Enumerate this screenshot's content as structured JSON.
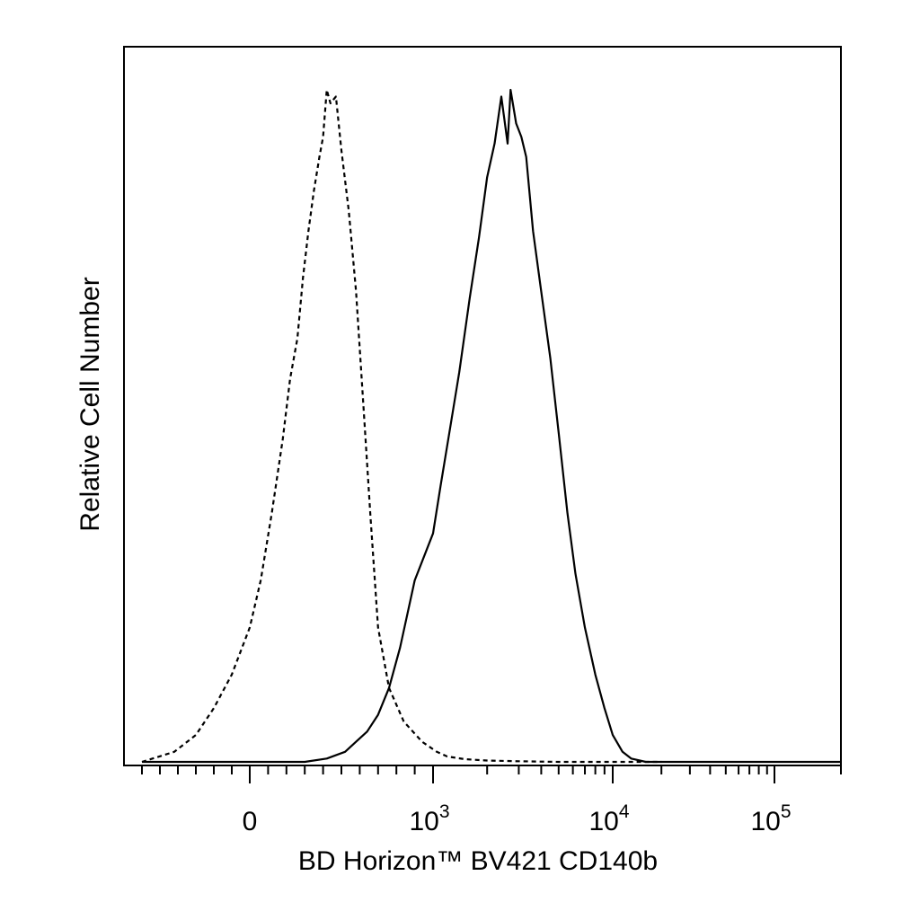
{
  "chart_data": {
    "type": "line",
    "title": "",
    "xlabel": "BD Horizon™ BV421 CD140b",
    "ylabel": "Relative Cell Number",
    "x_scale": "biexponential",
    "xlim": [
      -700,
      200000
    ],
    "ylim": [
      0,
      100
    ],
    "x_tick_labels": [
      {
        "value": 0,
        "base": "0",
        "exp": ""
      },
      {
        "value": 1000,
        "base": "10",
        "exp": "3"
      },
      {
        "value": 10000,
        "base": "10",
        "exp": "4"
      },
      {
        "value": 100000,
        "base": "10",
        "exp": "5"
      }
    ],
    "grid": false,
    "legend": "none",
    "series": [
      {
        "style": "dashed",
        "color": "#000000",
        "x": [
          -600,
          -420,
          -300,
          -200,
          -100,
          0,
          60,
          120,
          180,
          220,
          260,
          290,
          320,
          350,
          380,
          400,
          420,
          440,
          470,
          500,
          540,
          580,
          620,
          660,
          700,
          760,
          840,
          940,
          1050,
          1200,
          1500,
          2000,
          3000,
          5000,
          10000,
          20000
        ],
        "y": [
          0,
          1.5,
          4,
          8,
          13,
          20,
          27,
          37,
          48,
          57,
          63,
          72,
          79,
          85,
          90,
          93,
          100,
          98,
          99,
          91,
          82,
          70,
          53,
          36,
          20,
          11,
          6,
          3,
          1.5,
          0.8,
          0.4,
          0.2,
          0.1,
          0,
          0,
          0
        ]
      },
      {
        "style": "solid",
        "color": "#000000",
        "x": [
          -600,
          0,
          300,
          420,
          520,
          580,
          640,
          700,
          760,
          820,
          900,
          1000,
          1100,
          1250,
          1400,
          1600,
          1800,
          2000,
          2200,
          2400,
          2600,
          2700,
          2900,
          3100,
          3300,
          3600,
          4000,
          4500,
          5000,
          5600,
          6200,
          7000,
          8000,
          9000,
          10000,
          11500,
          13000,
          16000,
          20000,
          50000,
          200000
        ],
        "y": [
          0,
          0,
          0,
          0.5,
          1.5,
          3,
          4.5,
          7,
          11,
          17,
          27,
          34,
          41,
          50,
          58,
          69,
          78,
          87,
          92,
          99,
          92,
          100,
          95,
          93,
          90,
          79,
          70,
          60,
          49,
          37,
          28,
          20,
          13,
          8,
          4,
          1.5,
          0.5,
          0,
          0,
          0,
          0
        ]
      }
    ]
  }
}
